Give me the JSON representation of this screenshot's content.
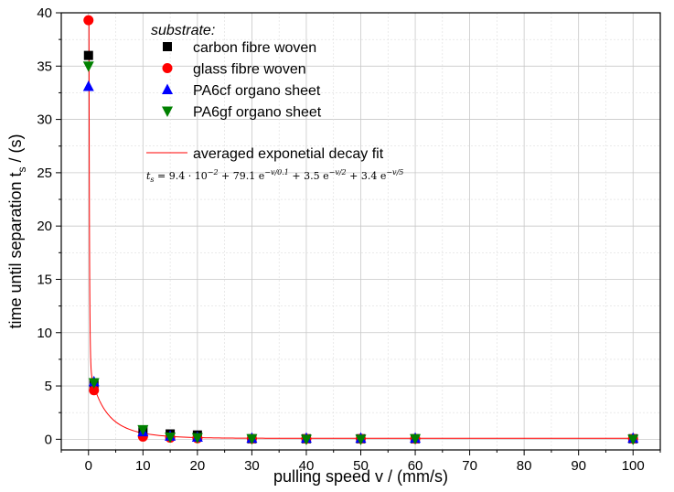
{
  "chart_data": {
    "type": "scatter",
    "xlabel": "pulling speed v / (mm/s)",
    "ylabel": "time until separation t",
    "ylabel_subscript": "s",
    "ylabel_unit": " / (s)",
    "xlim": [
      -5,
      105
    ],
    "ylim": [
      -1,
      40
    ],
    "x_ticks": [
      0,
      10,
      20,
      30,
      40,
      50,
      60,
      70,
      80,
      90,
      100
    ],
    "y_ticks": [
      0,
      5,
      10,
      15,
      20,
      25,
      30,
      35,
      40
    ],
    "grid": true,
    "legend_title": "substrate:",
    "legend_position": "top-center",
    "series": [
      {
        "name": "carbon fibre woven",
        "marker": "square",
        "color": "#000000",
        "points": [
          [
            0,
            36.0
          ],
          [
            1,
            5.2
          ],
          [
            10,
            0.8
          ],
          [
            15,
            0.5
          ],
          [
            20,
            0.4
          ],
          [
            30,
            0.05
          ],
          [
            40,
            0.05
          ],
          [
            50,
            0.05
          ],
          [
            60,
            0.05
          ],
          [
            100,
            0.05
          ]
        ]
      },
      {
        "name": "glass fibre woven",
        "marker": "circle",
        "color": "#ff0000",
        "points": [
          [
            0,
            39.3
          ],
          [
            1,
            4.6
          ],
          [
            10,
            0.25
          ],
          [
            15,
            0.15
          ],
          [
            20,
            0.1
          ],
          [
            30,
            0.05
          ],
          [
            40,
            0.05
          ],
          [
            50,
            0.05
          ],
          [
            60,
            0.05
          ],
          [
            100,
            0.05
          ]
        ]
      },
      {
        "name": "PA6cf organo sheet",
        "marker": "triangle-up",
        "color": "#0000ff",
        "points": [
          [
            0,
            33.1
          ],
          [
            1,
            5.4
          ],
          [
            10,
            0.7
          ],
          [
            15,
            0.3
          ],
          [
            20,
            0.2
          ],
          [
            30,
            0.1
          ],
          [
            40,
            0.1
          ],
          [
            50,
            0.1
          ],
          [
            60,
            0.1
          ],
          [
            100,
            0.1
          ]
        ]
      },
      {
        "name": "PA6gf organo sheet",
        "marker": "triangle-down",
        "color": "#008000",
        "points": [
          [
            0,
            35.0
          ],
          [
            1,
            5.3
          ],
          [
            10,
            0.9
          ],
          [
            15,
            0.2
          ],
          [
            20,
            0.15
          ],
          [
            30,
            0.05
          ],
          [
            40,
            0.0
          ],
          [
            50,
            0.0
          ],
          [
            60,
            0.05
          ],
          [
            100,
            0.0
          ]
        ]
      }
    ],
    "fit": {
      "name": "averaged exponetial decay fit",
      "color": "#ff0000",
      "y0": 0.094,
      "terms": [
        [
          79.1,
          0.1
        ],
        [
          3.5,
          2
        ],
        [
          3.4,
          5
        ]
      ],
      "formula_lhs": "t",
      "formula_lhs_sub": "s",
      "formula_parts": [
        {
          "t": " = 9.4 · 10"
        },
        {
          "sup": "−2"
        },
        {
          "t": " + 79.1 e"
        },
        {
          "sup": "−v/0.1"
        },
        {
          "t": " + 3.5 e"
        },
        {
          "sup": "−v/2"
        },
        {
          "t": " + 3.4 e"
        },
        {
          "sup": "−v/5"
        }
      ]
    }
  }
}
